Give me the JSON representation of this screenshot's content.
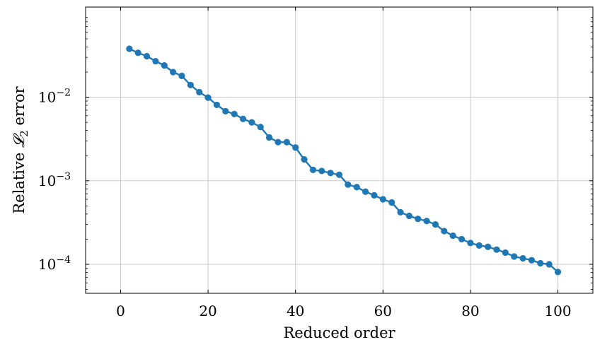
{
  "chart_data": {
    "type": "line",
    "xlabel": "Reduced order",
    "ylabel": "Relative 𝓛₂ error",
    "ylabel_parts": {
      "before": "Relative ",
      "symbol": "𝓛",
      "subscript": "2",
      "after": " error"
    },
    "yscale": "log",
    "xlim": [
      -8,
      108
    ],
    "ylim": [
      4.5e-05,
      0.12
    ],
    "grid": true,
    "x_ticks": [
      0,
      20,
      40,
      60,
      80,
      100
    ],
    "y_ticks": [
      {
        "value": 0.0001,
        "base": "10",
        "exp": "−4"
      },
      {
        "value": 0.001,
        "base": "10",
        "exp": "−3"
      },
      {
        "value": 0.01,
        "base": "10",
        "exp": "−2"
      }
    ],
    "series": [
      {
        "color": "#1f77b4",
        "marker": "circle",
        "x": [
          2,
          4,
          6,
          8,
          10,
          12,
          14,
          16,
          18,
          20,
          22,
          24,
          26,
          28,
          30,
          32,
          34,
          36,
          38,
          40,
          42,
          44,
          46,
          48,
          50,
          52,
          54,
          56,
          58,
          60,
          62,
          64,
          66,
          68,
          70,
          72,
          74,
          76,
          78,
          80,
          82,
          84,
          86,
          88,
          90,
          92,
          94,
          96,
          98,
          100
        ],
        "y": [
          0.038,
          0.034,
          0.031,
          0.027,
          0.024,
          0.02,
          0.018,
          0.014,
          0.0115,
          0.0099,
          0.0081,
          0.0068,
          0.0063,
          0.0055,
          0.005,
          0.0044,
          0.0033,
          0.0029,
          0.0029,
          0.0025,
          0.0018,
          0.00135,
          0.00131,
          0.00124,
          0.00118,
          0.0009,
          0.00084,
          0.00074,
          0.00067,
          0.0006,
          0.00055,
          0.00042,
          0.00038,
          0.00035,
          0.00033,
          0.0003,
          0.00025,
          0.00022,
          0.0002,
          0.00018,
          0.000168,
          0.000162,
          0.00015,
          0.000138,
          0.000124,
          0.000118,
          0.000112,
          0.000103,
          0.0001,
          8.1e-05
        ]
      }
    ]
  }
}
